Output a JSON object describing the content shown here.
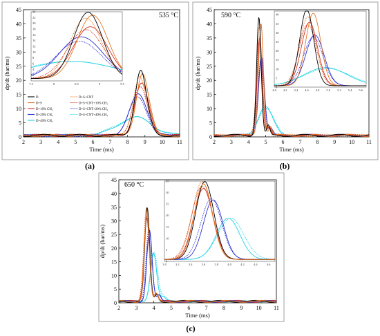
{
  "figure": {
    "captions": [
      "(a)",
      "(b)",
      "(c)"
    ]
  },
  "legend": {
    "entries": [
      {
        "label": "D",
        "color": "#000000",
        "dash": false
      },
      {
        "label": "D+S",
        "color": "#e87722",
        "dash": false
      },
      {
        "label": "D+10% CH₄",
        "color": "#d4301e",
        "dash": false
      },
      {
        "label": "D+20% CH₄",
        "color": "#2a2fd1",
        "dash": false
      },
      {
        "label": "D+40% CH₄",
        "color": "#21d3e3",
        "dash": false
      },
      {
        "label": "D+S+CNT",
        "color": "#e87722",
        "dash": true
      },
      {
        "label": "D+S+CNT+10% CH₄",
        "color": "#d4301e",
        "dash": true
      },
      {
        "label": "D+S+CNT+20% CH₄",
        "color": "#2a2fd1",
        "dash": true
      },
      {
        "label": "D+S+CNT+40% CH₄",
        "color": "#21d3e3",
        "dash": true
      }
    ]
  },
  "chart_data": [
    {
      "type": "line",
      "id": "a",
      "title": "535 °C",
      "xlabel": "Time (ms)",
      "ylabel": "dp/dt (bar/ms)",
      "xlim": [
        2,
        11
      ],
      "ylim": [
        0,
        45
      ],
      "xticks": [
        2,
        3,
        4,
        5,
        6,
        7,
        8,
        9,
        10,
        11
      ],
      "yticks": [
        0,
        5,
        10,
        15,
        20,
        25,
        30,
        35,
        40,
        45
      ],
      "series": [
        {
          "name": "D",
          "peak_x": 8.75,
          "peak_y": 23,
          "width": 0.32
        },
        {
          "name": "D+S",
          "peak_x": 8.85,
          "peak_y": 22,
          "width": 0.34
        },
        {
          "name": "D+10% CH₄",
          "peak_x": 8.8,
          "peak_y": 18,
          "width": 0.38
        },
        {
          "name": "D+20% CH₄",
          "peak_x": 8.6,
          "peak_y": 14.5,
          "width": 0.48
        },
        {
          "name": "D+40% CH₄",
          "peak_x": 8.4,
          "peak_y": 6,
          "width": 0.95
        },
        {
          "name": "D+S+CNT",
          "peak_x": 8.7,
          "peak_y": 21,
          "width": 0.35
        },
        {
          "name": "D+S+CNT+10% CH₄",
          "peak_x": 8.7,
          "peak_y": 17,
          "width": 0.4
        },
        {
          "name": "D+S+CNT+20% CH₄",
          "peak_x": 8.55,
          "peak_y": 13,
          "width": 0.5
        },
        {
          "name": "D+S+CNT+40% CH₄",
          "peak_x": 8.35,
          "peak_y": 6,
          "width": 1.0
        }
      ],
      "inset": {
        "xlim": [
          7.5,
          9.5
        ],
        "ylim": [
          0,
          24
        ],
        "xticks": [
          "7.5",
          "8",
          "8.5",
          "9",
          "9.5"
        ],
        "yticks": [
          "2",
          "4",
          "6",
          "8",
          "10",
          "12",
          "14",
          "16",
          "18",
          "20",
          "22",
          "24"
        ]
      }
    },
    {
      "type": "line",
      "id": "b",
      "title": "590 °C",
      "xlabel": "Time (ms)",
      "ylabel": "dp/dt (bar/ms)",
      "xlim": [
        2,
        11
      ],
      "ylim": [
        0,
        45
      ],
      "xticks": [
        2,
        3,
        4,
        5,
        6,
        7,
        8,
        9,
        10,
        11
      ],
      "yticks": [
        0,
        5,
        10,
        15,
        20,
        25,
        30,
        35,
        40,
        45
      ],
      "series": [
        {
          "name": "D",
          "peak_x": 4.6,
          "peak_y": 42,
          "width": 0.13
        },
        {
          "name": "D+S",
          "peak_x": 4.72,
          "peak_y": 40,
          "width": 0.14
        },
        {
          "name": "D+10% CH₄",
          "peak_x": 4.65,
          "peak_y": 35,
          "width": 0.15
        },
        {
          "name": "D+20% CH₄",
          "peak_x": 4.75,
          "peak_y": 28,
          "width": 0.17
        },
        {
          "name": "D+40% CH₄",
          "peak_x": 4.95,
          "peak_y": 10,
          "width": 0.4
        },
        {
          "name": "D+S+CNT",
          "peak_x": 4.62,
          "peak_y": 38,
          "width": 0.15
        },
        {
          "name": "D+S+CNT+10% CH₄",
          "peak_x": 4.62,
          "peak_y": 34,
          "width": 0.16
        },
        {
          "name": "D+S+CNT+20% CH₄",
          "peak_x": 4.72,
          "peak_y": 27,
          "width": 0.18
        },
        {
          "name": "D+S+CNT+40% CH₄",
          "peak_x": 4.98,
          "peak_y": 9.5,
          "width": 0.42
        }
      ],
      "inset": {
        "xlim": [
          4.0,
          5.7
        ],
        "ylim": [
          0,
          42
        ],
        "xticks": [
          "4.0",
          "4.2",
          "4.4",
          "4.6",
          "4.8",
          "5.0",
          "5.2",
          "5.4",
          "5.6"
        ],
        "yticks": [
          "0",
          "5",
          "10",
          "15",
          "20",
          "25",
          "30",
          "35",
          "40"
        ]
      }
    },
    {
      "type": "line",
      "id": "c",
      "title": "650 °C",
      "xlabel": "Time (ms)",
      "ylabel": "dp/dt (bar/ms)",
      "xlim": [
        2,
        11
      ],
      "ylim": [
        0,
        45
      ],
      "xticks": [
        2,
        3,
        4,
        5,
        6,
        7,
        8,
        9,
        10,
        11
      ],
      "yticks": [
        0,
        5,
        10,
        15,
        20,
        25,
        30,
        35,
        40,
        45
      ],
      "series": [
        {
          "name": "D",
          "peak_x": 3.62,
          "peak_y": 34,
          "width": 0.14
        },
        {
          "name": "D+S",
          "peak_x": 3.6,
          "peak_y": 33,
          "width": 0.14
        },
        {
          "name": "D+10% CH₄",
          "peak_x": 3.6,
          "peak_y": 31,
          "width": 0.15
        },
        {
          "name": "D+20% CH₄",
          "peak_x": 3.75,
          "peak_y": 26,
          "width": 0.15
        },
        {
          "name": "D+40% CH₄",
          "peak_x": 3.98,
          "peak_y": 18,
          "width": 0.18
        },
        {
          "name": "D+S+CNT",
          "peak_x": 3.58,
          "peak_y": 34,
          "width": 0.15
        },
        {
          "name": "D+S+CNT+10% CH₄",
          "peak_x": 3.58,
          "peak_y": 32,
          "width": 0.16
        },
        {
          "name": "D+S+CNT+20% CH₄",
          "peak_x": 3.72,
          "peak_y": 26.5,
          "width": 0.16
        },
        {
          "name": "D+S+CNT+40% CH₄",
          "peak_x": 4.02,
          "peak_y": 18,
          "width": 0.2
        }
      ],
      "inset": {
        "xlim": [
          3.0,
          4.7
        ],
        "ylim": [
          0,
          35
        ],
        "xticks": [
          "3.0",
          "3.2",
          "3.4",
          "3.6",
          "3.8",
          "4.0",
          "4.2",
          "4.4",
          "4.6"
        ],
        "yticks": [
          "0",
          "5",
          "10",
          "15",
          "20",
          "25",
          "30",
          "35"
        ]
      }
    }
  ]
}
